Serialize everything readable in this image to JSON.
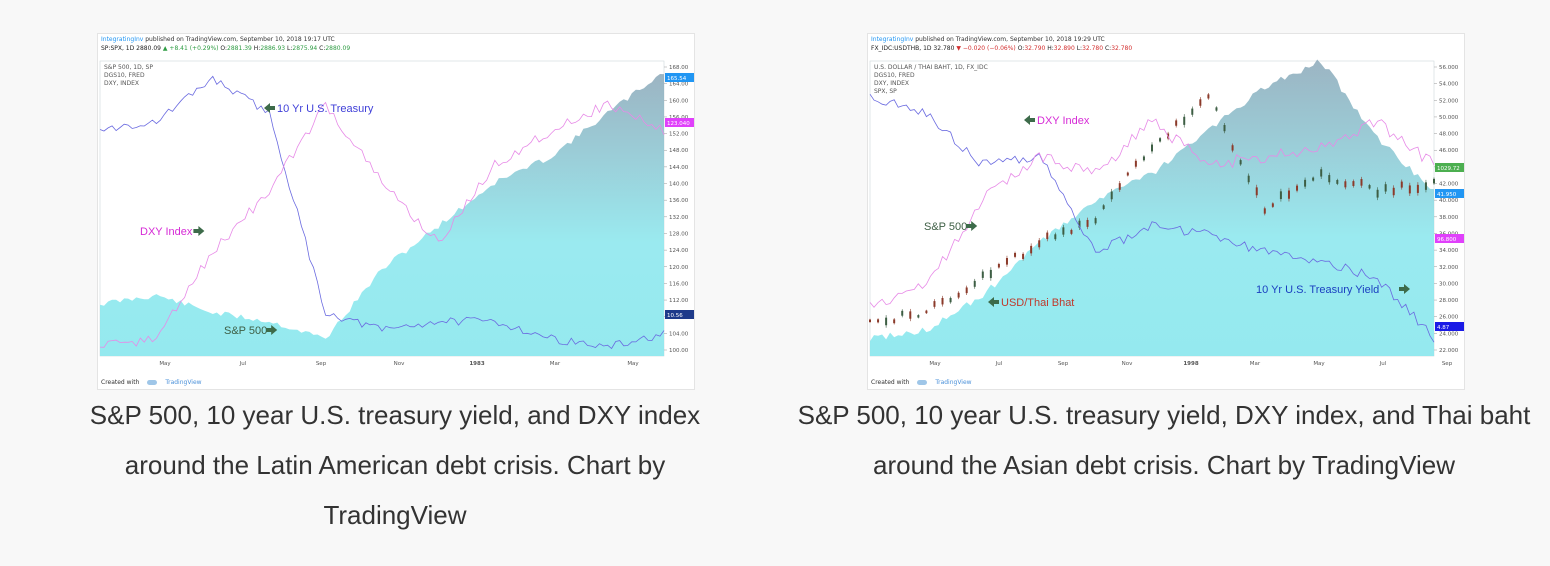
{
  "charts": [
    {
      "published": {
        "brand": "IntegratingInv",
        "text": " published on TradingView.com, September 10, 2018 19:17 UTC"
      },
      "ohlc": {
        "symbol": "SP:SPX, 1D 2880.09 ",
        "arrow": "▲",
        "change": "+8.41 (+0.29%)",
        "o_label": " O:",
        "o": "2881.39",
        "h_label": " H:",
        "h": "2886.93",
        "l_label": " L:",
        "l": "2875.94",
        "c_label": " C:",
        "c": "2880.09"
      },
      "legend": [
        "S&P 500, 1D, SP",
        "DGS10, FRED",
        "DXY, INDEX"
      ],
      "footer": {
        "created": "Created with",
        "brand": "TradingView"
      },
      "x_ticks": [
        "May",
        "Jul",
        "Sep",
        "Nov",
        "1983",
        "Mar",
        "May"
      ],
      "y_ticks": [
        "168.00",
        "164.00",
        "160.00",
        "156.00",
        "152.00",
        "148.00",
        "144.00",
        "140.00",
        "136.00",
        "132.00",
        "128.00",
        "124.00",
        "120.00",
        "116.00",
        "112.00",
        "108.00",
        "104.00",
        "100.00"
      ],
      "badges": [
        {
          "text": "165.54",
          "color": "#2196f3"
        },
        {
          "text": "123.040",
          "color": "#e040fb"
        },
        {
          "text": "10.56",
          "color": "#1e3a8a"
        }
      ],
      "annotations": [
        {
          "text": "10 Yr U.S. Treasury",
          "color": "#3f3fd8",
          "arrow": "left"
        },
        {
          "text": "DXY Index",
          "color": "#d62ad6",
          "arrow": "right"
        },
        {
          "text": "S&P 500",
          "color": "#3d5e44",
          "arrow": "right"
        }
      ]
    },
    {
      "published": {
        "brand": "IntegratingInv",
        "text": " published on TradingView.com, September 10, 2018 19:29 UTC"
      },
      "ohlc": {
        "symbol": "FX_IDC:USDTHB, 1D 32.780 ",
        "arrow": "▼",
        "change": "−0.020 (−0.06%)",
        "o_label": " O:",
        "o": "32.790",
        "h_label": " H:",
        "h": "32.890",
        "l_label": " L:",
        "l": "32.780",
        "c_label": " C:",
        "c": "32.780"
      },
      "legend": [
        "U.S. DOLLAR / THAI BAHT, 1D, FX_IDC",
        "DGS10, FRED",
        "DXY, INDEX",
        "SPX, SP"
      ],
      "footer": {
        "created": "Created with",
        "brand": "TradingView"
      },
      "x_ticks": [
        "May",
        "Jul",
        "Sep",
        "Nov",
        "1998",
        "Mar",
        "May",
        "Jul",
        "Sep"
      ],
      "y_ticks": [
        "56.000",
        "54.000",
        "52.000",
        "50.000",
        "48.000",
        "46.000",
        "44.000",
        "42.000",
        "40.000",
        "38.000",
        "36.000",
        "34.000",
        "32.000",
        "30.000",
        "28.000",
        "26.000",
        "24.000",
        "22.000"
      ],
      "badges": [
        {
          "text": "1029.72",
          "color": "#4caf50"
        },
        {
          "text": "41.950",
          "color": "#2196f3"
        },
        {
          "text": "96.800",
          "color": "#e040fb"
        },
        {
          "text": "4.87",
          "color": "#1a1ae6"
        }
      ],
      "annotations": [
        {
          "text": "DXY Index",
          "color": "#d62ad6",
          "arrow": "left"
        },
        {
          "text": "S&P 500",
          "color": "#3d5e44",
          "arrow": "right"
        },
        {
          "text": "USD/Thai Bhat",
          "color": "#c0392b",
          "arrow": "left"
        },
        {
          "text": "10 Yr U.S. Treasury Yield",
          "color": "#1a3fc0",
          "arrow": "right"
        }
      ]
    }
  ],
  "captions": {
    "left": "S&P 500, 10 year U.S. treasury yield, and DXY index around the Latin American debt crisis. Chart by TradingView",
    "right": "S&P 500, 10 year U.S. treasury yield, DXY index, and Thai baht around the Asian debt crisis. Chart by TradingView"
  },
  "colors": {
    "area_fill": "#8fe8ee",
    "area_fill_dark": "#8aa7b8",
    "treasury": "#6a6ae0",
    "dxy": "#e78ae7",
    "annotation_arrow": "#3d6b4a",
    "candle_up": "#3d5e44",
    "candle_down": "#8b3a2a"
  },
  "chart_data": [
    {
      "type": "area",
      "series": [
        {
          "name": "S&P 500",
          "x": [
            0,
            10,
            20,
            30,
            40,
            50,
            60,
            70,
            80,
            90,
            100
          ],
          "values": [
            112,
            114,
            110,
            108,
            104,
            120,
            130,
            140,
            146,
            156,
            165.54
          ]
        },
        {
          "name": "10 Yr U.S. Treasury",
          "x": [
            0,
            10,
            20,
            30,
            40,
            50,
            60,
            70,
            80,
            90,
            100
          ],
          "values": [
            152,
            154,
            164,
            156,
            110,
            106,
            108,
            108,
            104,
            102,
            105
          ]
        },
        {
          "name": "DXY Index",
          "x": [
            0,
            10,
            20,
            30,
            40,
            50,
            60,
            70,
            80,
            90,
            100
          ],
          "values": [
            102,
            104,
            124,
            138,
            158,
            140,
            126,
            144,
            152,
            158,
            152
          ]
        }
      ],
      "x_tick_labels": [
        "May",
        "Jul",
        "Sep",
        "Nov",
        "1983",
        "Mar",
        "May"
      ],
      "ylim": [
        100,
        168
      ]
    },
    {
      "type": "area",
      "series": [
        {
          "name": "USD/Thai Bhat",
          "x": [
            0,
            10,
            20,
            30,
            40,
            50,
            60,
            70,
            80,
            90,
            100
          ],
          "values": [
            24,
            25,
            29,
            35,
            40,
            43,
            48,
            53,
            56,
            47,
            41
          ]
        },
        {
          "name": "S&P 500",
          "x": [
            0,
            10,
            20,
            30,
            40,
            50,
            60,
            70,
            80,
            90,
            100
          ],
          "values": [
            26,
            27,
            31,
            35,
            38,
            46,
            52,
            39,
            43,
            41,
            42
          ]
        },
        {
          "name": "10 Yr U.S. Treasury Yield",
          "x": [
            0,
            10,
            20,
            30,
            40,
            50,
            60,
            70,
            80,
            90,
            100
          ],
          "values": [
            52,
            50,
            44,
            45,
            34,
            37,
            36,
            34,
            33,
            31,
            24
          ]
        },
        {
          "name": "DXY Index",
          "x": [
            0,
            10,
            20,
            30,
            40,
            50,
            60,
            70,
            80,
            90,
            100
          ],
          "values": [
            28,
            30,
            40,
            45,
            43,
            49,
            44,
            45,
            46,
            49,
            44
          ]
        }
      ],
      "x_tick_labels": [
        "May",
        "Jul",
        "Sep",
        "Nov",
        "1998",
        "Mar",
        "May",
        "Jul",
        "Sep"
      ],
      "ylim": [
        22,
        56
      ]
    }
  ]
}
